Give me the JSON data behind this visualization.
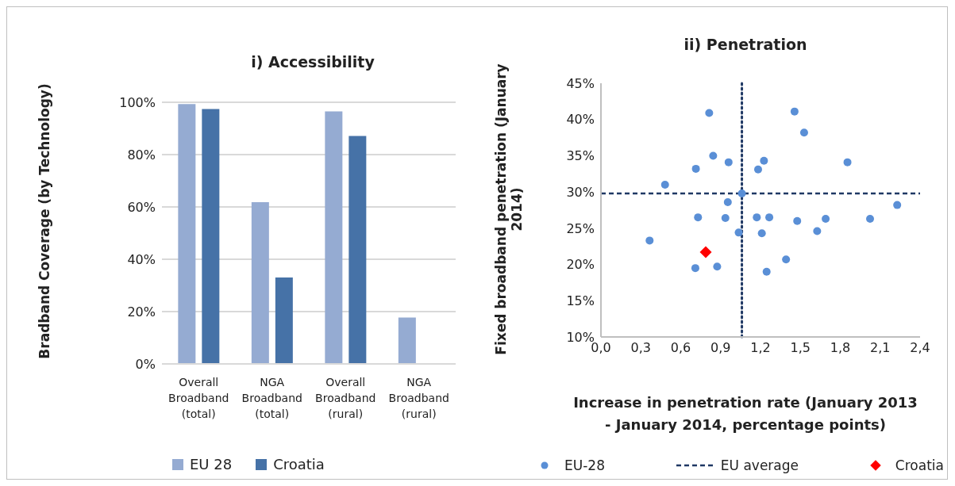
{
  "chart_data": [
    {
      "type": "bar",
      "title": "i) Accessibility",
      "ylabel": "Bradband Coverage (by Technology)",
      "categories": [
        "Overall Broadband (total)",
        "NGA Broadband (total)",
        "Overall Broadband (rural)",
        "NGA Broadband (rural)"
      ],
      "series": [
        {
          "name": "EU 28",
          "color": "#95abd2",
          "values": [
            99.3,
            61.8,
            96.5,
            17.7
          ]
        },
        {
          "name": "Croatia",
          "color": "#4672a7",
          "values": [
            97.4,
            33.0,
            87.1,
            0
          ]
        }
      ],
      "ylim": [
        0,
        100
      ],
      "yticks": [
        {
          "value": 0,
          "label": "0%"
        },
        {
          "value": 20,
          "label": "20%"
        },
        {
          "value": 40,
          "label": "40%"
        },
        {
          "value": 60,
          "label": "60%"
        },
        {
          "value": 80,
          "label": "80%"
        },
        {
          "value": 100,
          "label": "100%"
        }
      ],
      "grid": "y",
      "legend": "bottom"
    },
    {
      "type": "scatter",
      "title": "ii) Penetration",
      "xlabel": "Increase in penetration rate (January 2013 - January 2014, percentage points)",
      "ylabel": "Fixed broadband penetration (January 2014)",
      "series": [
        {
          "name": "EU-28",
          "color": "#5a8fd6",
          "marker": "circle",
          "x": [
            0.814,
            1.456,
            1.528,
            0.844,
            0.96,
            1.226,
            1.182,
            0.714,
            1.854,
            0.482,
            1.06,
            0.954,
            2.228,
            0.73,
            0.936,
            1.172,
            1.266,
            1.476,
            1.69,
            2.024,
            1.626,
            1.036,
            1.21,
            0.366,
            0.71,
            0.874,
            1.246,
            1.392
          ],
          "values": [
            40.9,
            41.1,
            38.2,
            35.0,
            34.1,
            34.3,
            33.1,
            33.2,
            34.1,
            31.0,
            29.8,
            28.6,
            28.2,
            26.5,
            26.4,
            26.5,
            26.5,
            26.0,
            26.3,
            26.3,
            24.6,
            24.4,
            24.3,
            23.3,
            19.5,
            19.7,
            19.0,
            20.7
          ]
        },
        {
          "name": "Croatia",
          "color": "#ff0000",
          "marker": "diamond",
          "x": [
            0.788
          ],
          "values": [
            21.7
          ]
        }
      ],
      "ref_lines": [
        {
          "axis": "y",
          "value": 29.8,
          "label": "EU average",
          "color": "#1f3864",
          "line_style": "dashed"
        },
        {
          "axis": "x",
          "value": 1.06,
          "color": "#1f3864",
          "line_style": "dotted"
        }
      ],
      "xlim": [
        0,
        2.4
      ],
      "xticks": [
        {
          "value": 0,
          "label": "0,0"
        },
        {
          "value": 0.3,
          "label": "0,3"
        },
        {
          "value": 0.6,
          "label": "0,6"
        },
        {
          "value": 0.9,
          "label": "0,9"
        },
        {
          "value": 1.2,
          "label": "1,2"
        },
        {
          "value": 1.5,
          "label": "1,5"
        },
        {
          "value": 1.8,
          "label": "1,8"
        },
        {
          "value": 2.1,
          "label": "2,1"
        },
        {
          "value": 2.4,
          "label": "2,4"
        }
      ],
      "ylim": [
        10,
        45
      ],
      "yticks": [
        {
          "value": 10,
          "label": "10%"
        },
        {
          "value": 15,
          "label": "15%"
        },
        {
          "value": 20,
          "label": "20%"
        },
        {
          "value": 25,
          "label": "25%"
        },
        {
          "value": 30,
          "label": "30%"
        },
        {
          "value": 35,
          "label": "35%"
        },
        {
          "value": 40,
          "label": "40%"
        },
        {
          "value": 45,
          "label": "45%"
        }
      ],
      "grid": false,
      "legend": "bottom"
    }
  ]
}
